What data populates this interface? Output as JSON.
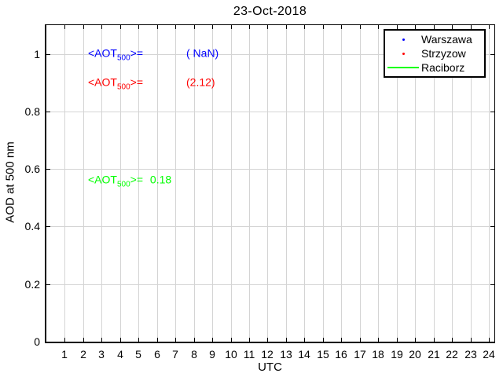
{
  "chart_data": {
    "type": "scatter",
    "title": "23-Oct-2018",
    "xlabel": "UTC",
    "ylabel": "AOD at 500 nm",
    "xlim": [
      0,
      24.3
    ],
    "ylim": [
      0,
      1.1
    ],
    "xticks": [
      1,
      2,
      3,
      4,
      5,
      6,
      7,
      8,
      9,
      10,
      11,
      12,
      13,
      14,
      15,
      16,
      17,
      18,
      19,
      20,
      21,
      22,
      23,
      24
    ],
    "yticks": [
      0,
      0.2,
      0.4,
      0.6,
      0.8,
      1
    ],
    "ytick_labels": [
      "0",
      "0.2",
      "0.4",
      "0.6",
      "0.8",
      "1"
    ],
    "grid": true,
    "grid_color": "#d4d4d4",
    "legend_position": "top-right",
    "series": [
      {
        "name": "Warszawa",
        "color": "#0000ff",
        "marker": "dot",
        "x": [],
        "y": [],
        "mean_aot_500": "NaN"
      },
      {
        "name": "Strzyzow",
        "color": "#ff0000",
        "marker": "dot",
        "x": [],
        "y": [],
        "mean_aot_500": 2.12
      },
      {
        "name": "Raciborz",
        "color": "#00ff00",
        "marker": "line",
        "x": [],
        "y": [],
        "mean_aot_500": 0.18
      }
    ]
  },
  "legend": {
    "entries": [
      {
        "label": "Warszawa",
        "color": "#0000ff",
        "marker": "dot"
      },
      {
        "label": "Strzyzow",
        "color": "#ff0000",
        "marker": "dot"
      },
      {
        "label": "Raciborz",
        "color": "#00ff00",
        "marker": "line"
      }
    ]
  },
  "annotations": [
    {
      "prefix": "<AOT",
      "sub": "500",
      "suffix": ">=",
      "value": "( NaN)",
      "color": "#0000ff"
    },
    {
      "prefix": "<AOT",
      "sub": "500",
      "suffix": ">=",
      "value": "(2.12)",
      "color": "#ff0000"
    },
    {
      "prefix": "<AOT",
      "sub": "500",
      "suffix": ">=",
      "value": "0.18",
      "color": "#00ff00"
    }
  ]
}
